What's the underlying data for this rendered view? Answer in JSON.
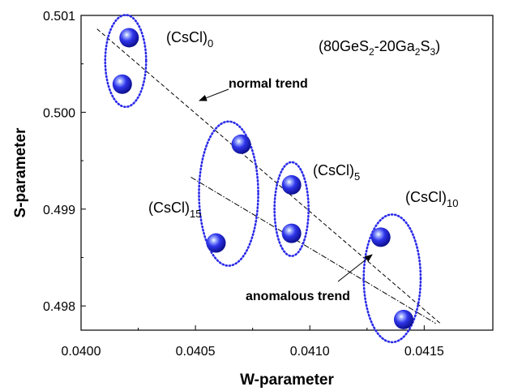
{
  "chart_data": {
    "type": "scatter",
    "title": "",
    "xlabel": "W-parameter",
    "ylabel": "S-parameter",
    "xlim": [
      0.04,
      0.0418
    ],
    "ylim": [
      0.49775,
      0.501
    ],
    "x_ticks": [
      0.04,
      0.0405,
      0.041,
      0.0415
    ],
    "x_tick_labels": [
      "0.0400",
      "0.0405",
      "0.0410",
      "0.0415"
    ],
    "y_ticks": [
      0.498,
      0.499,
      0.5,
      0.501
    ],
    "y_tick_labels": [
      "0.498",
      "0.499",
      "0.500",
      "0.501"
    ],
    "grid": false,
    "marker_color": "#2a2ae8",
    "points": [
      {
        "x": 0.04021,
        "y": 0.50077
      },
      {
        "x": 0.04018,
        "y": 0.50029
      },
      {
        "x": 0.0407,
        "y": 0.49967
      },
      {
        "x": 0.04059,
        "y": 0.49865
      },
      {
        "x": 0.04092,
        "y": 0.49925
      },
      {
        "x": 0.04092,
        "y": 0.49875
      },
      {
        "x": 0.04131,
        "y": 0.49871
      },
      {
        "x": 0.04141,
        "y": 0.49786
      }
    ],
    "groups": [
      {
        "label_main": "(CsCl)",
        "label_sub": "0",
        "points": [
          0,
          1
        ]
      },
      {
        "label_main": "(CsCl)",
        "label_sub": "15",
        "points": [
          2,
          3
        ]
      },
      {
        "label_main": "(CsCl)",
        "label_sub": "5",
        "points": [
          4,
          5
        ]
      },
      {
        "label_main": "(CsCl)",
        "label_sub": "10",
        "points": [
          6,
          7
        ]
      }
    ],
    "trend_lines": [
      {
        "name": "normal trend",
        "style": "dashed",
        "from": [
          0.04007,
          0.50086
        ],
        "to": [
          0.04157,
          0.49782
        ]
      },
      {
        "name": "anomalous trend",
        "style": "dash-dot",
        "from": [
          0.04048,
          0.49933
        ],
        "to": [
          0.04155,
          0.49782
        ]
      }
    ],
    "annotations": {
      "composition": {
        "parts": [
          "(80GeS",
          "2",
          "-20Ga",
          "2",
          "S",
          "3",
          ")"
        ]
      },
      "normal_trend_label": "normal trend",
      "anomalous_trend_label": "anomalous trend"
    }
  }
}
